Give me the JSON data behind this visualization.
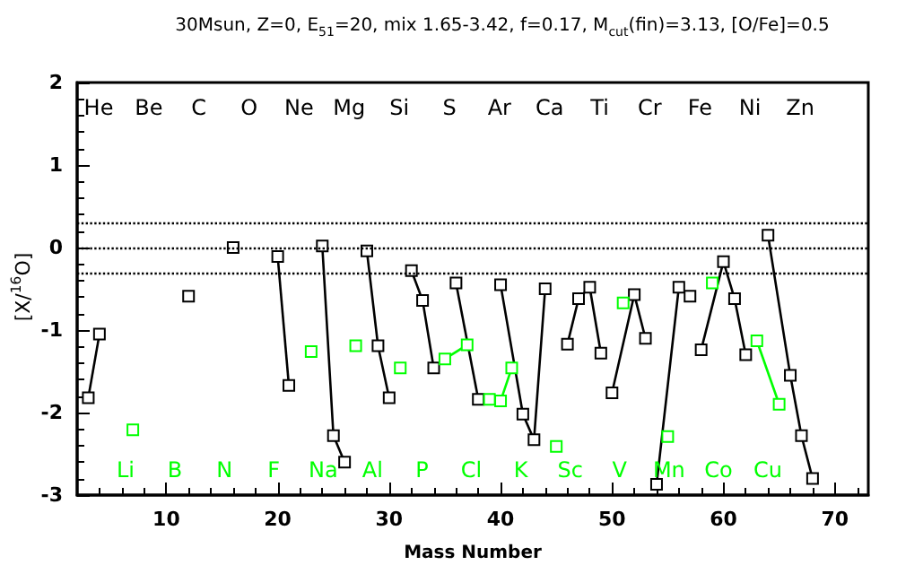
{
  "chart_data": {
    "type": "line",
    "title": "30Msun, Z=0, E$_{51}$=20, mix 1.65-3.42, f=0.17, M$_{cut}$(fin)=3.13, [O/Fe]=0.5",
    "xlabel": "Mass Number",
    "ylabel": "[X/$^{16}$O]",
    "xlim": [
      2,
      73
    ],
    "xticks": [
      10,
      20,
      30,
      40,
      50,
      60,
      70
    ],
    "ylim": [
      -3,
      2
    ],
    "yticks": [
      -3,
      -2,
      -1,
      0,
      1,
      2
    ],
    "grid": false,
    "marker": "square",
    "line_style": "solid",
    "series": [
      {
        "color": "#000000",
        "x": [
          3,
          4
        ],
        "values": [
          -1.82,
          -1.05
        ]
      },
      {
        "color": "#000000",
        "x": [
          12
        ],
        "values": [
          -0.59
        ]
      },
      {
        "color": "#000000",
        "x": [
          16
        ],
        "values": [
          0.0
        ]
      },
      {
        "color": "#000000",
        "x": [
          20,
          21
        ],
        "values": [
          -0.11,
          -1.67
        ]
      },
      {
        "color": "#000000",
        "x": [
          24,
          25,
          26
        ],
        "values": [
          0.02,
          -2.28,
          -2.6
        ]
      },
      {
        "color": "#000000",
        "x": [
          28,
          29,
          30
        ],
        "values": [
          -0.04,
          -1.19,
          -1.82
        ]
      },
      {
        "color": "#000000",
        "x": [
          32,
          33,
          34
        ],
        "values": [
          -0.28,
          -0.64,
          -1.46
        ]
      },
      {
        "color": "#000000",
        "x": [
          36,
          38
        ],
        "values": [
          -0.43,
          -1.84
        ]
      },
      {
        "color": "#000000",
        "x": [
          40,
          42,
          43,
          44
        ],
        "values": [
          -0.45,
          -2.02,
          -2.33,
          -0.5
        ]
      },
      {
        "color": "#000000",
        "x": [
          46,
          47,
          48,
          49
        ],
        "values": [
          -1.17,
          -0.62,
          -0.48,
          -1.28
        ]
      },
      {
        "color": "#000000",
        "x": [
          50,
          52,
          53
        ],
        "values": [
          -1.76,
          -0.57,
          -1.1
        ]
      },
      {
        "color": "#000000",
        "x": [
          54,
          56,
          57
        ],
        "values": [
          -2.87,
          -0.48,
          -0.59
        ]
      },
      {
        "color": "#000000",
        "x": [
          58,
          60,
          61,
          62
        ],
        "values": [
          -1.24,
          -0.17,
          -0.62,
          -1.3
        ]
      },
      {
        "color": "#000000",
        "x": [
          64,
          66,
          67,
          68
        ],
        "values": [
          0.15,
          -1.55,
          -2.28,
          -2.8
        ]
      },
      {
        "color": "#00ff00",
        "x": [
          7
        ],
        "values": [
          -2.21
        ]
      },
      {
        "color": "#00ff00",
        "x": [
          23
        ],
        "values": [
          -1.26
        ]
      },
      {
        "color": "#00ff00",
        "x": [
          27
        ],
        "values": [
          -1.19
        ]
      },
      {
        "color": "#00ff00",
        "x": [
          31
        ],
        "values": [
          -1.46
        ]
      },
      {
        "color": "#00ff00",
        "x": [
          35,
          37
        ],
        "values": [
          -1.35,
          -1.18
        ]
      },
      {
        "color": "#00ff00",
        "x": [
          39,
          40,
          41
        ],
        "values": [
          -1.84,
          -1.86,
          -1.46
        ]
      },
      {
        "color": "#00ff00",
        "x": [
          45
        ],
        "values": [
          -2.41
        ]
      },
      {
        "color": "#00ff00",
        "x": [
          51
        ],
        "values": [
          -0.67
        ]
      },
      {
        "color": "#00ff00",
        "x": [
          55
        ],
        "values": [
          -2.29
        ]
      },
      {
        "color": "#00ff00",
        "x": [
          59
        ],
        "values": [
          -0.43
        ]
      },
      {
        "color": "#00ff00",
        "x": [
          63,
          65
        ],
        "values": [
          -1.13,
          -1.9
        ]
      }
    ],
    "ref_lines": [
      {
        "axis": "y",
        "value": 0.3,
        "line_style": "dotted",
        "color": "#000000"
      },
      {
        "axis": "y",
        "value": 0,
        "line_style": "dotted",
        "color": "#000000"
      },
      {
        "axis": "y",
        "value": -0.3,
        "line_style": "dotted",
        "color": "#000000"
      }
    ],
    "annotations": [
      "He",
      "Be",
      "C",
      "O",
      "Ne",
      "Mg",
      "Si",
      "S",
      "Ar",
      "Ca",
      "Ti",
      "Cr",
      "Fe",
      "Ni",
      "Zn",
      "Li",
      "B",
      "N",
      "F",
      "Na",
      "Al",
      "P",
      "Cl",
      "K",
      "Sc",
      "V",
      "Mn",
      "Co",
      "Cu"
    ]
  }
}
